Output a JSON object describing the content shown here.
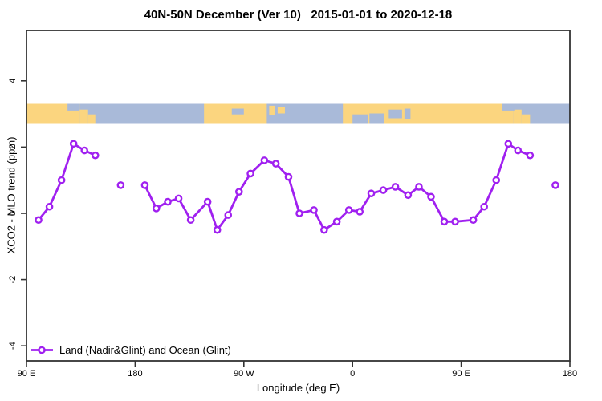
{
  "title": "40N-50N December (Ver 10)   2015-01-01 to 2020-12-18",
  "axes": {
    "x": {
      "label": "Longitude (deg E)",
      "tick_labels": [
        "90 E",
        "180",
        "90 W",
        "0",
        "90 E",
        "180"
      ],
      "tick_lons": [
        90,
        180,
        270,
        360,
        450,
        540
      ]
    },
    "y": {
      "label": "XCO2 - MLO trend (ppm)",
      "tick_labels": [
        "4",
        "2",
        "0",
        "-2",
        "-4"
      ],
      "tick_vals": [
        4,
        2,
        0,
        -2,
        -4
      ]
    }
  },
  "legend": {
    "label": "Land (Nadir&Glint) and Ocean (Glint)",
    "marker": "open-circle-on-line"
  },
  "colors": {
    "series": "#A020F0",
    "land": "#FBD57F",
    "ocean": "#A9BAD9",
    "axis": "#333333",
    "marker_fill": "#ffffff"
  },
  "chart_data": {
    "type": "line",
    "title": "40N-50N December (Ver 10)   2015-01-01 to 2020-12-18",
    "xlabel": "Longitude (deg E)",
    "ylabel": "XCO2 - MLO trend (ppm)",
    "x_axis_degrees": [
      90,
      540
    ],
    "x_wraps_globe": true,
    "ylim": [
      -4.5,
      5.5
    ],
    "grid": false,
    "legend_position": "bottom-left",
    "series": [
      {
        "name": "Land (Nadir&Glint) and Ocean (Glint)",
        "marker": "open-circle",
        "color": "#A020F0",
        "segments": [
          {
            "points": [
              [
                100,
                -0.2
              ],
              [
                109,
                0.2
              ],
              [
                119,
                1.0
              ],
              [
                129,
                2.1
              ],
              [
                138,
                1.9
              ],
              [
                147,
                1.75
              ]
            ]
          },
          {
            "points": [
              [
                168,
                0.85
              ]
            ]
          },
          {
            "points": [
              [
                188,
                0.85
              ],
              [
                197.5,
                0.15
              ],
              [
                207,
                0.35
              ],
              [
                216,
                0.45
              ],
              [
                226,
                -0.2
              ],
              [
                240,
                0.35
              ],
              [
                248,
                -0.5
              ],
              [
                257,
                -0.05
              ],
              [
                266,
                0.65
              ],
              [
                275.5,
                1.2
              ],
              [
                287,
                1.6
              ],
              [
                296.5,
                1.5
              ],
              [
                307,
                1.1
              ],
              [
                316,
                0.0
              ],
              [
                328,
                0.1
              ],
              [
                336.5,
                -0.5
              ],
              [
                347,
                -0.25
              ],
              [
                357,
                0.1
              ],
              [
                366,
                0.05
              ],
              [
                375.5,
                0.6
              ],
              [
                385.5,
                0.7
              ],
              [
                395.5,
                0.8
              ],
              [
                406,
                0.55
              ],
              [
                415,
                0.8
              ],
              [
                425,
                0.5
              ],
              [
                436,
                -0.25
              ],
              [
                445,
                -0.25
              ],
              [
                460,
                -0.2
              ],
              [
                469,
                0.2
              ],
              [
                479,
                1.0
              ],
              [
                489,
                2.1
              ],
              [
                497,
                1.9
              ],
              [
                507,
                1.75
              ]
            ]
          },
          {
            "points": [
              [
                528,
                0.85
              ]
            ]
          }
        ]
      }
    ],
    "map_band": {
      "description": "land-ocean strip at 40N-50N drawn across the plot",
      "y_range_ppm": [
        2.75,
        3.35
      ],
      "land_color": "#FBD57F",
      "ocean_color": "#A9BAD9",
      "land_segments": [
        {
          "lon": [
            90,
            134
          ],
          "top": 0,
          "bottom": 1
        },
        {
          "lon": [
            134,
            141
          ],
          "top": 0.3,
          "bottom": 1
        },
        {
          "lon": [
            141,
            147
          ],
          "top": 0.55,
          "bottom": 1
        },
        {
          "lon": [
            237,
            289
          ],
          "top": 0,
          "bottom": 1
        },
        {
          "lon": [
            291,
            296
          ],
          "top": 0.1,
          "bottom": 0.6
        },
        {
          "lon": [
            298,
            304
          ],
          "top": 0.15,
          "bottom": 0.5
        },
        {
          "lon": [
            352,
            493
          ],
          "top": 0,
          "bottom": 1
        },
        {
          "lon": [
            493,
            500
          ],
          "top": 0.3,
          "bottom": 1
        },
        {
          "lon": [
            500,
            507
          ],
          "top": 0.55,
          "bottom": 1
        }
      ],
      "water_overlays": [
        {
          "lon": [
            124,
            134
          ],
          "top": 0,
          "bottom": 0.35
        },
        {
          "lon": [
            260,
            270
          ],
          "top": 0.25,
          "bottom": 0.55
        },
        {
          "lon": [
            360,
            373
          ],
          "top": 0.55,
          "bottom": 1
        },
        {
          "lon": [
            374,
            386
          ],
          "top": 0.5,
          "bottom": 1
        },
        {
          "lon": [
            390,
            401
          ],
          "top": 0.3,
          "bottom": 0.75
        },
        {
          "lon": [
            403,
            408
          ],
          "top": 0.25,
          "bottom": 0.8
        },
        {
          "lon": [
            484,
            494
          ],
          "top": 0,
          "bottom": 0.35
        }
      ]
    }
  }
}
